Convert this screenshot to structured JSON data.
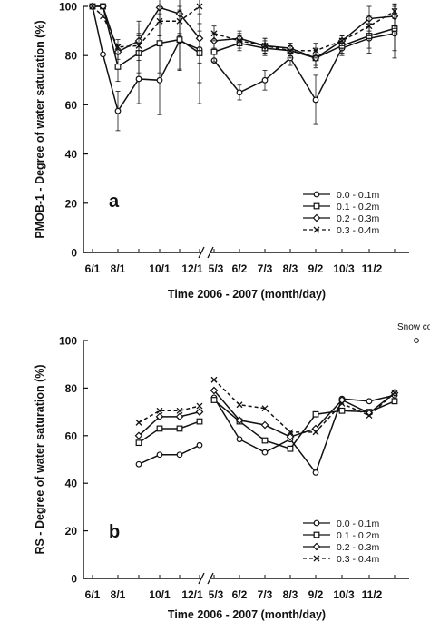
{
  "chart_data": [
    {
      "type": "line",
      "panel_label": "a",
      "ylabel": "PMOB-1 - Degree of water saturation (%)",
      "xlabel": "Time   2006 - 2007 (month/day)",
      "ylim": [
        0,
        100
      ],
      "y_ticks": [
        "0",
        "20",
        "40",
        "60",
        "80",
        "100"
      ],
      "x_ticks": [
        "6/1",
        "8/1",
        "10/1",
        "12/1",
        "5/3",
        "6/2",
        "7/3",
        "8/3",
        "9/2",
        "10/3",
        "11/2"
      ],
      "x_axis_break": "between 12/1 and 5/3",
      "legend_position": "bottom-right",
      "series": [
        {
          "name": "0.0 - 0.1m",
          "marker": "circle",
          "dash": "solid",
          "segments": [
            {
              "x": [
                "6/1",
                "7/1",
                "8/1",
                "9/1",
                "10/1",
                "11/1",
                "12/1"
              ],
              "y": [
                100,
                80.5,
                57.5,
                70.5,
                70,
                86,
                82.5
              ]
            },
            {
              "x": [
                "5/3",
                "6/2",
                "7/3",
                "8/3",
                "9/2",
                "10/3",
                "11/2",
                "12/2"
              ],
              "y": [
                78,
                65,
                70,
                79,
                62,
                83,
                87,
                89
              ]
            }
          ],
          "error_bars": true
        },
        {
          "name": "0.1 - 0.2m",
          "marker": "square",
          "dash": "solid",
          "segments": [
            {
              "x": [
                "6/1",
                "7/1",
                "8/1",
                "9/1",
                "10/1",
                "11/1",
                "12/1"
              ],
              "y": [
                100,
                100,
                75.5,
                81,
                85,
                86.5,
                81
              ]
            },
            {
              "x": [
                "5/3",
                "6/2",
                "7/3",
                "8/3",
                "9/2",
                "10/3",
                "11/2",
                "12/2"
              ],
              "y": [
                81.5,
                85,
                83,
                82,
                79,
                84,
                88,
                91
              ]
            }
          ],
          "error_bars": true
        },
        {
          "name": "0.2 - 0.3m",
          "marker": "diamond",
          "dash": "solid",
          "segments": [
            {
              "x": [
                "6/1",
                "7/1",
                "8/1",
                "9/1",
                "10/1",
                "11/1",
                "12/1"
              ],
              "y": [
                100,
                100,
                81.5,
                86,
                99.5,
                97,
                87
              ]
            },
            {
              "x": [
                "5/3",
                "6/2",
                "7/3",
                "8/3",
                "9/2",
                "10/3",
                "11/2",
                "12/2"
              ],
              "y": [
                86,
                87,
                84,
                83,
                79,
                86,
                95,
                96
              ]
            }
          ],
          "error_bars": true
        },
        {
          "name": "0.3 - 0.4m",
          "marker": "x",
          "dash": "dashed",
          "segments": [
            {
              "x": [
                "6/1",
                "7/1",
                "8/1",
                "9/1",
                "10/1",
                "11/1",
                "12/1"
              ],
              "y": [
                100,
                96,
                83.5,
                84,
                94,
                94,
                100
              ]
            },
            {
              "x": [
                "5/3",
                "6/2",
                "7/3",
                "8/3",
                "9/2",
                "10/3",
                "11/2",
                "12/2"
              ],
              "y": [
                89,
                86,
                84,
                82,
                82,
                86,
                92,
                98
              ]
            }
          ],
          "error_bars": true
        }
      ]
    },
    {
      "type": "line",
      "panel_label": "b",
      "ylabel": "RS - Degree of water saturation (%)",
      "xlabel": "Time   2006 - 2007 (month/day)",
      "ylim": [
        0,
        100
      ],
      "y_ticks": [
        "0",
        "20",
        "40",
        "60",
        "80",
        "100"
      ],
      "x_ticks": [
        "6/1",
        "8/1",
        "10/1",
        "12/1",
        "5/3",
        "6/2",
        "7/3",
        "8/3",
        "9/2",
        "10/3",
        "11/2"
      ],
      "x_axis_break": "between 12/1 and 5/3",
      "legend_position": "bottom-right",
      "annotation": {
        "text": "Snow cover",
        "x": "12/2",
        "y": 100
      },
      "series": [
        {
          "name": "0.0 - 0.1m",
          "marker": "circle",
          "dash": "solid",
          "segments": [
            {
              "x": [
                "9/1",
                "10/1",
                "11/1",
                "12/1"
              ],
              "y": [
                48,
                52,
                52,
                56
              ]
            },
            {
              "x": [
                "5/3",
                "6/2",
                "7/3",
                "8/3",
                "9/2",
                "10/3",
                "11/2",
                "12/2"
              ],
              "y": [
                76,
                58.5,
                53,
                58.5,
                44.5,
                75.5,
                74.5,
                77
              ]
            }
          ]
        },
        {
          "name": "0.1 - 0.2m",
          "marker": "square",
          "dash": "solid",
          "segments": [
            {
              "x": [
                "9/1",
                "10/1",
                "11/1",
                "12/1"
              ],
              "y": [
                57,
                63,
                63,
                66
              ]
            },
            {
              "x": [
                "5/3",
                "6/2",
                "7/3",
                "8/3",
                "9/2",
                "10/3",
                "11/2",
                "12/2"
              ],
              "y": [
                75,
                66,
                58,
                54.5,
                69,
                70.5,
                70,
                74.5
              ]
            }
          ]
        },
        {
          "name": "0.2 - 0.3m",
          "marker": "diamond",
          "dash": "solid",
          "segments": [
            {
              "x": [
                "9/1",
                "10/1",
                "11/1",
                "12/1"
              ],
              "y": [
                60,
                68,
                68,
                70
              ]
            },
            {
              "x": [
                "5/3",
                "6/2",
                "7/3",
                "8/3",
                "9/2",
                "10/3",
                "11/2",
                "12/2"
              ],
              "y": [
                79,
                66.5,
                64.5,
                59.5,
                63,
                75,
                69.5,
                78
              ]
            }
          ]
        },
        {
          "name": "0.3 - 0.4m",
          "marker": "x",
          "dash": "dashed",
          "segments": [
            {
              "x": [
                "9/1",
                "10/1",
                "11/1",
                "12/1"
              ],
              "y": [
                65.5,
                70.5,
                70.5,
                72.5
              ]
            },
            {
              "x": [
                "5/3",
                "6/2",
                "7/3",
                "8/3",
                "9/2",
                "10/3",
                "11/2",
                "12/2"
              ],
              "y": [
                83.5,
                73,
                71.5,
                61.5,
                61.5,
                73.5,
                68.5,
                78
              ]
            }
          ]
        }
      ]
    }
  ]
}
